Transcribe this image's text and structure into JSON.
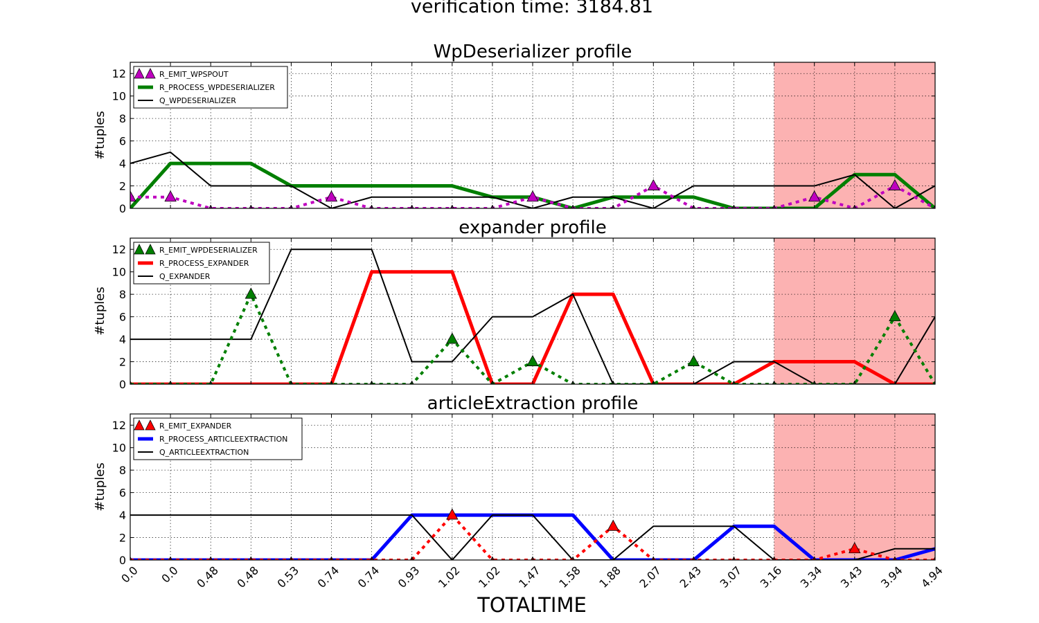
{
  "figure": {
    "suptitle": "verification time: 3184.81",
    "xlabel": "TOTALTIME"
  },
  "colors": {
    "shade": "#fcb2b2",
    "magenta": "#bf00bf",
    "green": "#007f00",
    "red": "#ff0000",
    "blue": "#0000ff",
    "black": "#000000"
  },
  "chart_data": [
    {
      "type": "line",
      "title": "WpDeserializer profile",
      "xlabel": "TOTALTIME",
      "ylabel": "#tuples",
      "ylim": [
        0,
        13
      ],
      "yticks": [
        0,
        2,
        4,
        6,
        8,
        10,
        12
      ],
      "categories": [
        "0.0",
        "0.0",
        "0.48",
        "0.48",
        "0.53",
        "0.74",
        "0.74",
        "0.93",
        "1.02",
        "1.02",
        "1.47",
        "1.58",
        "1.88",
        "2.07",
        "2.43",
        "3.07",
        "3.16",
        "3.34",
        "3.43",
        "3.94",
        "4.94"
      ],
      "grid": true,
      "legend_position": "upper-left",
      "shaded_region": {
        "from": "3.16",
        "to": "4.94"
      },
      "series": [
        {
          "name": "R_EMIT_WPSPOUT",
          "style": "dotted-triangle",
          "color": "#bf00bf",
          "values": [
            1,
            1,
            0,
            0,
            0,
            1,
            0,
            0,
            0,
            0,
            1,
            0,
            0,
            2,
            0,
            0,
            0,
            1,
            0,
            2,
            0
          ]
        },
        {
          "name": "R_PROCESS_WPDESERIALIZER",
          "style": "thick",
          "color": "#007f00",
          "values": [
            0,
            4,
            4,
            4,
            2,
            2,
            2,
            2,
            2,
            1,
            1,
            0,
            1,
            1,
            1,
            0,
            0,
            0,
            3,
            3,
            0
          ]
        },
        {
          "name": "Q_WPDESERIALIZER",
          "style": "thin",
          "color": "#000000",
          "values": [
            4,
            5,
            2,
            2,
            2,
            0,
            1,
            1,
            1,
            1,
            0,
            1,
            1,
            0,
            2,
            2,
            2,
            2,
            3,
            0,
            2
          ]
        }
      ]
    },
    {
      "type": "line",
      "title": "expander profile",
      "xlabel": "TOTALTIME",
      "ylabel": "#tuples",
      "ylim": [
        0,
        13
      ],
      "yticks": [
        0,
        2,
        4,
        6,
        8,
        10,
        12
      ],
      "categories": [
        "0.0",
        "0.0",
        "0.48",
        "0.48",
        "0.53",
        "0.74",
        "0.74",
        "0.93",
        "1.02",
        "1.02",
        "1.47",
        "1.58",
        "1.88",
        "2.07",
        "2.43",
        "3.07",
        "3.16",
        "3.34",
        "3.43",
        "3.94",
        "4.94"
      ],
      "grid": true,
      "legend_position": "upper-left",
      "shaded_region": {
        "from": "3.16",
        "to": "4.94"
      },
      "series": [
        {
          "name": "R_EMIT_WPDESERIALIZER",
          "style": "dotted-triangle",
          "color": "#007f00",
          "values": [
            0,
            0,
            0,
            8,
            0,
            0,
            0,
            0,
            4,
            0,
            2,
            0,
            0,
            0,
            2,
            0,
            0,
            0,
            0,
            6,
            0
          ]
        },
        {
          "name": "R_PROCESS_EXPANDER",
          "style": "thick",
          "color": "#ff0000",
          "values": [
            0,
            0,
            0,
            0,
            0,
            0,
            10,
            10,
            10,
            0,
            0,
            8,
            8,
            0,
            0,
            0,
            2,
            2,
            2,
            0,
            0
          ]
        },
        {
          "name": "Q_EXPANDER",
          "style": "thin",
          "color": "#000000",
          "values": [
            4,
            4,
            4,
            4,
            12,
            12,
            12,
            2,
            2,
            6,
            6,
            8,
            0,
            0,
            0,
            2,
            2,
            0,
            0,
            0,
            6
          ]
        }
      ]
    },
    {
      "type": "line",
      "title": "articleExtraction profile",
      "xlabel": "TOTALTIME",
      "ylabel": "#tuples",
      "ylim": [
        0,
        13
      ],
      "yticks": [
        0,
        2,
        4,
        6,
        8,
        10,
        12
      ],
      "categories": [
        "0.0",
        "0.0",
        "0.48",
        "0.48",
        "0.53",
        "0.74",
        "0.74",
        "0.93",
        "1.02",
        "1.02",
        "1.47",
        "1.58",
        "1.88",
        "2.07",
        "2.43",
        "3.07",
        "3.16",
        "3.34",
        "3.43",
        "3.94",
        "4.94"
      ],
      "grid": true,
      "legend_position": "upper-left",
      "shaded_region": {
        "from": "3.16",
        "to": "4.94"
      },
      "series": [
        {
          "name": "R_EMIT_EXPANDER",
          "style": "dotted-triangle",
          "color": "#ff0000",
          "values": [
            0,
            0,
            0,
            0,
            0,
            0,
            0,
            0,
            4,
            0,
            0,
            0,
            3,
            0,
            0,
            0,
            0,
            0,
            1,
            0,
            0
          ]
        },
        {
          "name": "R_PROCESS_ARTICLEEXTRACTION",
          "style": "thick",
          "color": "#0000ff",
          "values": [
            0,
            0,
            0,
            0,
            0,
            0,
            0,
            4,
            4,
            4,
            4,
            4,
            0,
            0,
            0,
            3,
            3,
            0,
            0,
            0,
            1
          ]
        },
        {
          "name": "Q_ARTICLEEXTRACTION",
          "style": "thin",
          "color": "#000000",
          "values": [
            4,
            4,
            4,
            4,
            4,
            4,
            4,
            4,
            0,
            4,
            4,
            0,
            0,
            3,
            3,
            3,
            0,
            0,
            0,
            1,
            1
          ]
        }
      ]
    }
  ]
}
